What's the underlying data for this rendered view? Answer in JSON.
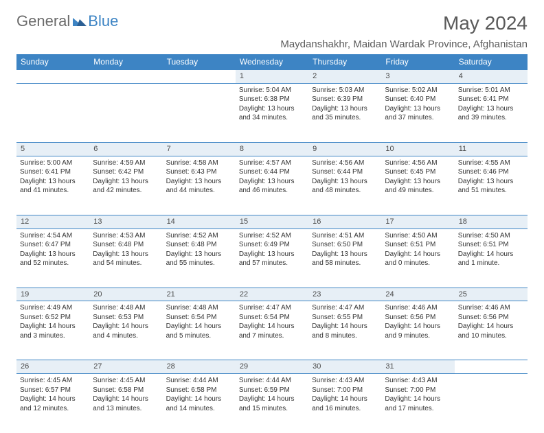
{
  "logo": {
    "text1": "General",
    "text2": "Blue"
  },
  "title": "May 2024",
  "location": "Maydanshakhr, Maidan Wardak Province, Afghanistan",
  "colors": {
    "header_bg": "#3d84c4",
    "daynum_bg": "#e7eff6",
    "border": "#3d84c4",
    "text": "#333333",
    "logo_gray": "#6b6b6b"
  },
  "day_headers": [
    "Sunday",
    "Monday",
    "Tuesday",
    "Wednesday",
    "Thursday",
    "Friday",
    "Saturday"
  ],
  "weeks": [
    {
      "nums": [
        "",
        "",
        "",
        "1",
        "2",
        "3",
        "4"
      ],
      "cells": [
        null,
        null,
        null,
        {
          "sunrise": "5:04 AM",
          "sunset": "6:38 PM",
          "daylight": "13 hours and 34 minutes."
        },
        {
          "sunrise": "5:03 AM",
          "sunset": "6:39 PM",
          "daylight": "13 hours and 35 minutes."
        },
        {
          "sunrise": "5:02 AM",
          "sunset": "6:40 PM",
          "daylight": "13 hours and 37 minutes."
        },
        {
          "sunrise": "5:01 AM",
          "sunset": "6:41 PM",
          "daylight": "13 hours and 39 minutes."
        }
      ]
    },
    {
      "nums": [
        "5",
        "6",
        "7",
        "8",
        "9",
        "10",
        "11"
      ],
      "cells": [
        {
          "sunrise": "5:00 AM",
          "sunset": "6:41 PM",
          "daylight": "13 hours and 41 minutes."
        },
        {
          "sunrise": "4:59 AM",
          "sunset": "6:42 PM",
          "daylight": "13 hours and 42 minutes."
        },
        {
          "sunrise": "4:58 AM",
          "sunset": "6:43 PM",
          "daylight": "13 hours and 44 minutes."
        },
        {
          "sunrise": "4:57 AM",
          "sunset": "6:44 PM",
          "daylight": "13 hours and 46 minutes."
        },
        {
          "sunrise": "4:56 AM",
          "sunset": "6:44 PM",
          "daylight": "13 hours and 48 minutes."
        },
        {
          "sunrise": "4:56 AM",
          "sunset": "6:45 PM",
          "daylight": "13 hours and 49 minutes."
        },
        {
          "sunrise": "4:55 AM",
          "sunset": "6:46 PM",
          "daylight": "13 hours and 51 minutes."
        }
      ]
    },
    {
      "nums": [
        "12",
        "13",
        "14",
        "15",
        "16",
        "17",
        "18"
      ],
      "cells": [
        {
          "sunrise": "4:54 AM",
          "sunset": "6:47 PM",
          "daylight": "13 hours and 52 minutes."
        },
        {
          "sunrise": "4:53 AM",
          "sunset": "6:48 PM",
          "daylight": "13 hours and 54 minutes."
        },
        {
          "sunrise": "4:52 AM",
          "sunset": "6:48 PM",
          "daylight": "13 hours and 55 minutes."
        },
        {
          "sunrise": "4:52 AM",
          "sunset": "6:49 PM",
          "daylight": "13 hours and 57 minutes."
        },
        {
          "sunrise": "4:51 AM",
          "sunset": "6:50 PM",
          "daylight": "13 hours and 58 minutes."
        },
        {
          "sunrise": "4:50 AM",
          "sunset": "6:51 PM",
          "daylight": "14 hours and 0 minutes."
        },
        {
          "sunrise": "4:50 AM",
          "sunset": "6:51 PM",
          "daylight": "14 hours and 1 minute."
        }
      ]
    },
    {
      "nums": [
        "19",
        "20",
        "21",
        "22",
        "23",
        "24",
        "25"
      ],
      "cells": [
        {
          "sunrise": "4:49 AM",
          "sunset": "6:52 PM",
          "daylight": "14 hours and 3 minutes."
        },
        {
          "sunrise": "4:48 AM",
          "sunset": "6:53 PM",
          "daylight": "14 hours and 4 minutes."
        },
        {
          "sunrise": "4:48 AM",
          "sunset": "6:54 PM",
          "daylight": "14 hours and 5 minutes."
        },
        {
          "sunrise": "4:47 AM",
          "sunset": "6:54 PM",
          "daylight": "14 hours and 7 minutes."
        },
        {
          "sunrise": "4:47 AM",
          "sunset": "6:55 PM",
          "daylight": "14 hours and 8 minutes."
        },
        {
          "sunrise": "4:46 AM",
          "sunset": "6:56 PM",
          "daylight": "14 hours and 9 minutes."
        },
        {
          "sunrise": "4:46 AM",
          "sunset": "6:56 PM",
          "daylight": "14 hours and 10 minutes."
        }
      ]
    },
    {
      "nums": [
        "26",
        "27",
        "28",
        "29",
        "30",
        "31",
        ""
      ],
      "cells": [
        {
          "sunrise": "4:45 AM",
          "sunset": "6:57 PM",
          "daylight": "14 hours and 12 minutes."
        },
        {
          "sunrise": "4:45 AM",
          "sunset": "6:58 PM",
          "daylight": "14 hours and 13 minutes."
        },
        {
          "sunrise": "4:44 AM",
          "sunset": "6:58 PM",
          "daylight": "14 hours and 14 minutes."
        },
        {
          "sunrise": "4:44 AM",
          "sunset": "6:59 PM",
          "daylight": "14 hours and 15 minutes."
        },
        {
          "sunrise": "4:43 AM",
          "sunset": "7:00 PM",
          "daylight": "14 hours and 16 minutes."
        },
        {
          "sunrise": "4:43 AM",
          "sunset": "7:00 PM",
          "daylight": "14 hours and 17 minutes."
        },
        null
      ]
    }
  ],
  "labels": {
    "sunrise": "Sunrise: ",
    "sunset": "Sunset: ",
    "daylight": "Daylight: "
  }
}
